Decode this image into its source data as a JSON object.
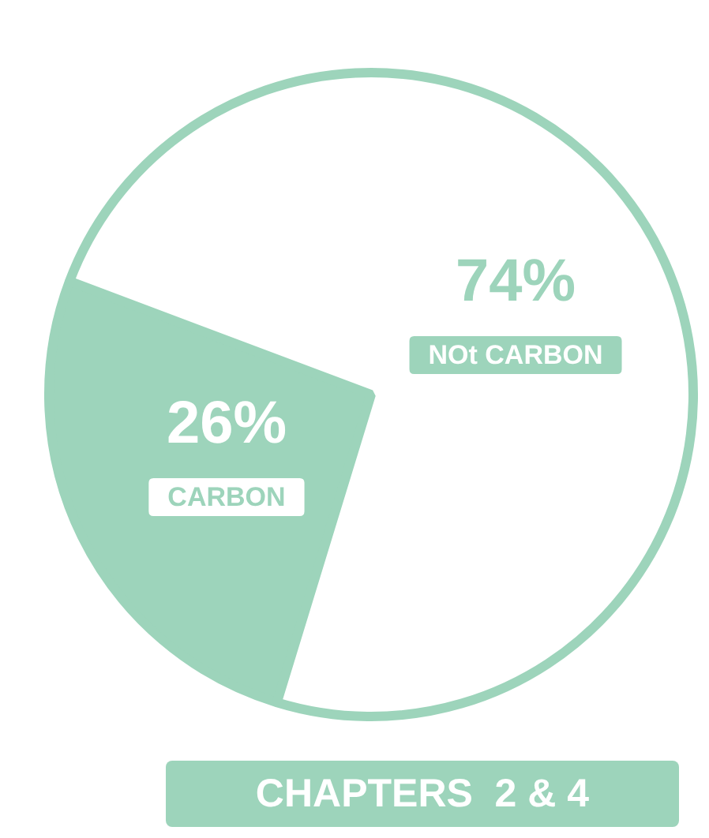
{
  "chart_data": {
    "type": "pie",
    "categories": [
      "CARBON",
      "NOt CARBON"
    ],
    "values": [
      26,
      74
    ],
    "colors": [
      "#9dd4bb",
      "#ffffff"
    ],
    "value_labels": [
      "26%",
      "74%"
    ],
    "annotations": [
      "CHAPTERS  2 & 4"
    ],
    "legend": false
  }
}
